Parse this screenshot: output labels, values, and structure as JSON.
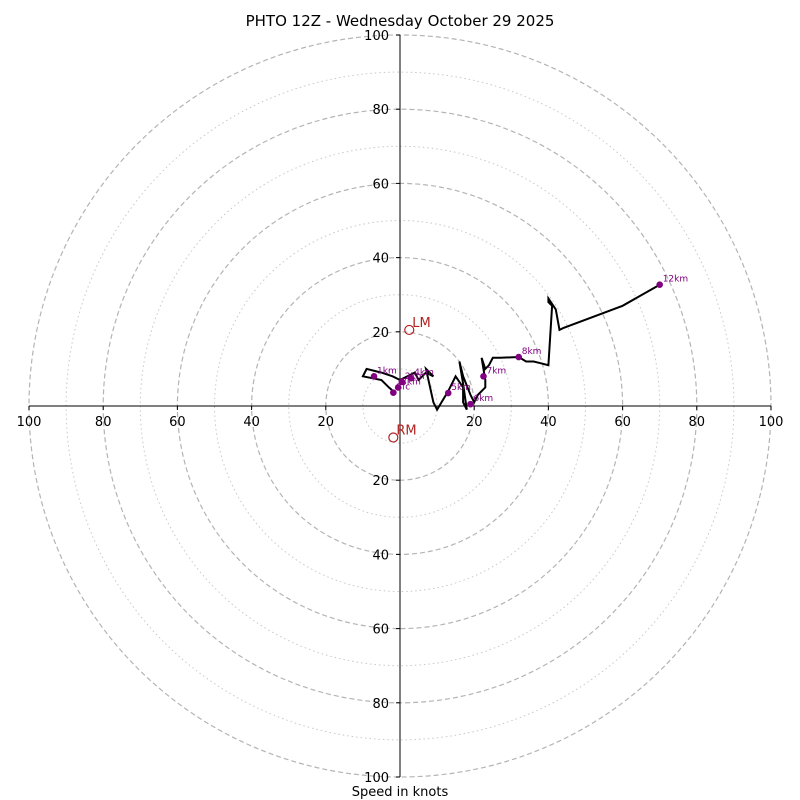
{
  "chart_data": {
    "type": "hodograph",
    "title": "PHTO 12Z - Wednesday October 29 2025",
    "xlabel": "Speed in knots",
    "xlim": [
      -100,
      100
    ],
    "ylim": [
      -100,
      100
    ],
    "major_rings": [
      20,
      40,
      60,
      80,
      100
    ],
    "minor_rings": [
      10,
      30,
      50,
      70,
      90
    ],
    "x_ticks": [
      {
        "value": -100,
        "label": "100"
      },
      {
        "value": -80,
        "label": "80"
      },
      {
        "value": -60,
        "label": "60"
      },
      {
        "value": -40,
        "label": "40"
      },
      {
        "value": -20,
        "label": "20"
      },
      {
        "value": 20,
        "label": "20"
      },
      {
        "value": 40,
        "label": "40"
      },
      {
        "value": 60,
        "label": "60"
      },
      {
        "value": 80,
        "label": "80"
      },
      {
        "value": 100,
        "label": "100"
      }
    ],
    "y_ticks_upper": [
      {
        "value": 20,
        "label": "20"
      },
      {
        "value": 40,
        "label": "40"
      },
      {
        "value": 60,
        "label": "60"
      },
      {
        "value": 80,
        "label": "80"
      },
      {
        "value": 100,
        "label": "100"
      }
    ],
    "y_ticks_lower": [
      {
        "value": -20,
        "label": "20"
      },
      {
        "value": -40,
        "label": "40"
      },
      {
        "value": -60,
        "label": "60"
      },
      {
        "value": -80,
        "label": "80"
      },
      {
        "value": -100,
        "label": "100"
      }
    ],
    "trace": {
      "color": "#000000",
      "u": [
        -1.8,
        -3,
        -5,
        -10,
        -9,
        -5,
        -2,
        0,
        4,
        5,
        7,
        9,
        7,
        9,
        10,
        13,
        15,
        17,
        17,
        18,
        17,
        16,
        17,
        19,
        20,
        21,
        23,
        23,
        22,
        23,
        24,
        25,
        27,
        32,
        34,
        36,
        38,
        40,
        41,
        40,
        40,
        42,
        43,
        44,
        60,
        70
      ],
      "v": [
        4,
        5,
        7,
        8,
        10,
        9,
        8,
        7,
        9,
        7,
        9,
        8,
        10,
        1,
        -1,
        4,
        8,
        5,
        1,
        -1,
        6,
        12,
        8,
        3,
        1,
        3,
        5,
        7,
        13,
        10,
        11,
        13,
        13,
        13.2,
        12,
        12,
        11.5,
        11,
        27,
        28,
        29,
        26,
        20.5,
        21,
        27,
        32.7
      ]
    },
    "height_markers": {
      "color": "#800080",
      "points": [
        {
          "label": "Sfc",
          "u": -1.8,
          "v": 3.6
        },
        {
          "label": "1km",
          "u": -7,
          "v": 8
        },
        {
          "label": "2km",
          "u": 0.5,
          "v": 6.5
        },
        {
          "label": "3km",
          "u": -0.5,
          "v": 5
        },
        {
          "label": "4km",
          "u": 3,
          "v": 7.5
        },
        {
          "label": "5km",
          "u": 13,
          "v": 3.5
        },
        {
          "label": "6km",
          "u": 19,
          "v": 0.5
        },
        {
          "label": "7km",
          "u": 22.5,
          "v": 8
        },
        {
          "label": "8km",
          "u": 32,
          "v": 13.2
        },
        {
          "label": "12km",
          "u": 70,
          "v": 32.7
        }
      ]
    },
    "storm_motion": {
      "color": "#b22222",
      "points": [
        {
          "label": "LM",
          "u": 2.5,
          "v": 20.5
        },
        {
          "label": "RM",
          "u": -1.8,
          "v": -8.5
        }
      ]
    }
  }
}
